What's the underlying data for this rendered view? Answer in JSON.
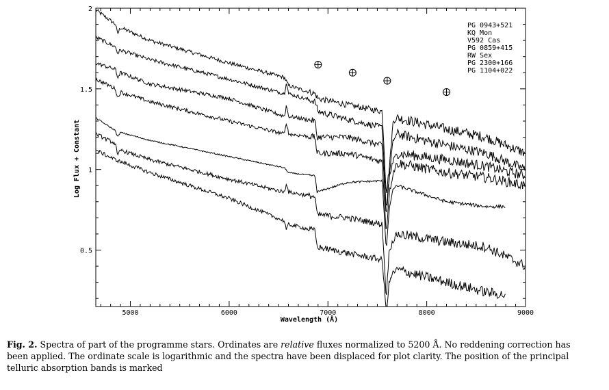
{
  "chart_data": {
    "type": "line",
    "title": "",
    "xlabel": "Wavelength (Å)",
    "ylabel": "Log Flux + Constant",
    "xlim": [
      4650,
      9000
    ],
    "ylim": [
      0.15,
      2.0
    ],
    "x_ticks": [
      "5000",
      "6000",
      "7000",
      "8000",
      "9000"
    ],
    "y_ticks": [
      "0.5",
      "1",
      "1.5",
      "2"
    ],
    "legend_placement": "top-right",
    "legend": [
      "PG 0943+521",
      "KQ Mon",
      "V592 Cas",
      "PG 0859+415",
      "RW Sex",
      "PG 2300+166",
      "PG 1104+022"
    ],
    "telluric_marker_x": [
      6900,
      7250,
      7600,
      8200
    ],
    "telluric_marker_y": [
      1.65,
      1.6,
      1.55,
      1.48
    ],
    "series": [
      {
        "x": [
          4650,
          4850,
          4870,
          4900,
          5200,
          6000,
          6560,
          6600,
          6870,
          6900,
          7200,
          7550,
          7590,
          7620,
          7660,
          7700,
          8200,
          8600,
          9000
        ],
        "y": [
          1.99,
          1.9,
          1.84,
          1.88,
          1.8,
          1.66,
          1.57,
          1.52,
          1.47,
          1.44,
          1.4,
          1.36,
          0.85,
          1.0,
          1.3,
          1.32,
          1.25,
          1.2,
          1.1
        ]
      },
      {
        "x": [
          4650,
          4850,
          4870,
          4900,
          5200,
          6000,
          6560,
          6580,
          6600,
          6870,
          6900,
          7200,
          7550,
          7590,
          7620,
          7660,
          7700,
          8200,
          8600,
          9000
        ],
        "y": [
          1.82,
          1.76,
          1.72,
          1.74,
          1.68,
          1.56,
          1.47,
          1.55,
          1.47,
          1.42,
          1.36,
          1.31,
          1.26,
          0.75,
          0.95,
          1.18,
          1.22,
          1.15,
          1.1,
          1.0
        ]
      },
      {
        "x": [
          4650,
          4850,
          4870,
          4900,
          5200,
          6000,
          6560,
          6580,
          6600,
          6870,
          6890,
          7200,
          7550,
          7590,
          7620,
          7660,
          7700,
          8200,
          8600,
          9000
        ],
        "y": [
          1.66,
          1.62,
          1.57,
          1.6,
          1.53,
          1.44,
          1.33,
          1.4,
          1.33,
          1.3,
          1.2,
          1.2,
          1.15,
          0.7,
          0.95,
          1.05,
          1.1,
          1.06,
          1.02,
          0.96
        ]
      },
      {
        "x": [
          4650,
          4850,
          4870,
          4900,
          5200,
          6000,
          6560,
          6580,
          6600,
          6870,
          6890,
          7200,
          7550,
          7590,
          7620,
          7660,
          7700,
          8200,
          8600,
          9000
        ],
        "y": [
          1.56,
          1.5,
          1.44,
          1.48,
          1.42,
          1.3,
          1.22,
          1.3,
          1.22,
          1.2,
          1.1,
          1.1,
          1.05,
          0.6,
          0.85,
          0.98,
          1.04,
          0.98,
          0.95,
          0.9
        ]
      },
      {
        "x": [
          4650,
          4850,
          4870,
          4900,
          5200,
          6000,
          6560,
          6600,
          6870,
          6890,
          7200,
          7550,
          7590,
          7620,
          7660,
          7700,
          8200,
          8600,
          8800
        ],
        "y": [
          1.32,
          1.24,
          1.2,
          1.23,
          1.18,
          1.08,
          1.01,
          0.98,
          0.96,
          0.86,
          0.92,
          0.93,
          0.5,
          0.75,
          0.88,
          0.9,
          0.8,
          0.77,
          0.77
        ]
      },
      {
        "x": [
          4650,
          4850,
          4870,
          4900,
          5200,
          6000,
          6560,
          6580,
          6600,
          6870,
          6890,
          7200,
          7550,
          7590,
          7620,
          7660,
          7700,
          8200,
          8600,
          9000
        ],
        "y": [
          1.22,
          1.16,
          1.08,
          1.12,
          1.06,
          0.94,
          0.86,
          0.92,
          0.86,
          0.83,
          0.72,
          0.7,
          0.66,
          0.2,
          0.5,
          0.56,
          0.6,
          0.55,
          0.52,
          0.4
        ]
      },
      {
        "x": [
          4650,
          4850,
          5200,
          6000,
          6560,
          6580,
          6600,
          6870,
          6890,
          7200,
          7550,
          7590,
          7620,
          7660,
          7700,
          8200,
          8600,
          8800
        ],
        "y": [
          1.12,
          1.06,
          0.98,
          0.82,
          0.68,
          0.62,
          0.66,
          0.62,
          0.52,
          0.48,
          0.44,
          0.1,
          0.3,
          0.36,
          0.38,
          0.3,
          0.24,
          0.22
        ]
      }
    ]
  },
  "caption": {
    "label": "Fig. 2.",
    "text_1": " Spectra of part of the programme stars. Ordinates are ",
    "text_italic": "relative",
    "text_2": " fluxes normalized to 5200 Å. No reddening correction has been applied. The ordinate scale is logarithmic and the spectra have been displaced for plot clarity. The position of the principal telluric absorption bands is marked"
  }
}
